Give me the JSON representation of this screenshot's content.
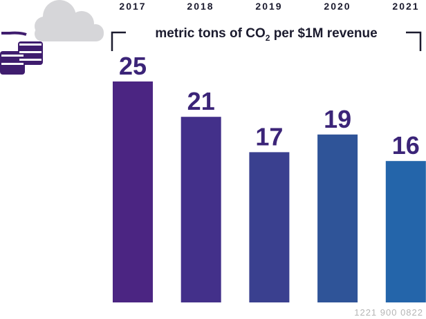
{
  "chart_data": {
    "type": "bar",
    "categories": [
      "2017",
      "2018",
      "2019",
      "2020",
      "2021"
    ],
    "values": [
      25,
      21,
      17,
      19,
      16
    ],
    "data_labels": [
      "25",
      "21",
      "17",
      "19",
      "16"
    ],
    "unit_label": {
      "prefix": "metric tons of CO",
      "subscript": "2",
      "suffix": " per $1M revenue"
    },
    "ylim": [
      0,
      25
    ],
    "grid": false,
    "legend": "none"
  },
  "footer": {
    "code": "1221 900 0822"
  },
  "icons": {
    "cloud": "cloud-icon",
    "coins": "coin-stack-icon"
  },
  "colors": {
    "bars": [
      "#4b2582",
      "#43308a",
      "#3a408f",
      "#2f5498",
      "#2465aa"
    ],
    "label": "#3b2478",
    "icon": "#3f1d6e",
    "cloud": "#d6d6d9"
  }
}
